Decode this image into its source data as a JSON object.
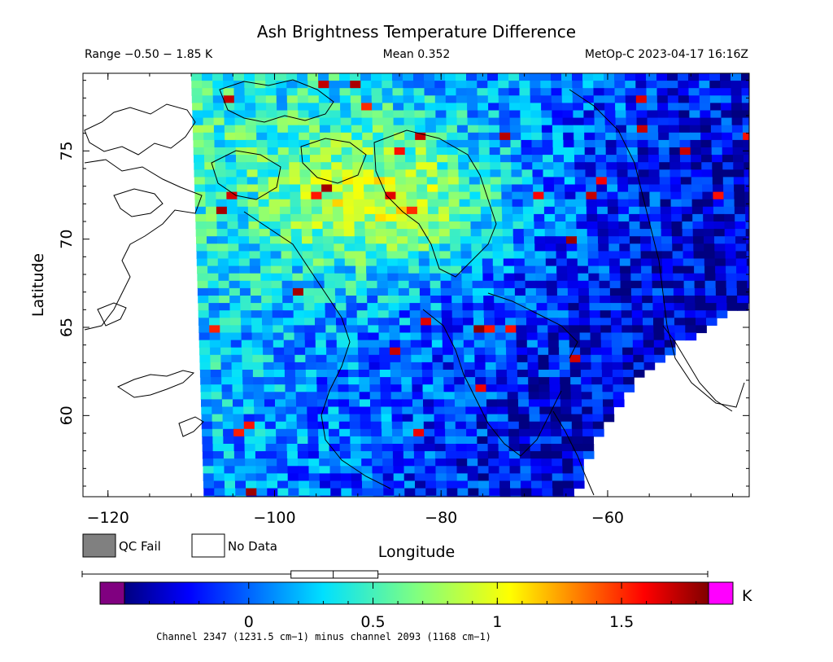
{
  "chart_data": {
    "type": "heatmap",
    "title": "Ash Brightness Temperature Difference",
    "header": {
      "range_text": "Range −0.50 − 1.85 K",
      "mean_text": "Mean 0.352",
      "source_text": "MetOp-C 2023-04-17 16:16Z"
    },
    "xlabel": "Longitude",
    "ylabel": "Latitude",
    "xlim": [
      -123,
      -43
    ],
    "ylim": [
      55.4,
      79.4
    ],
    "x_ticks": [
      -120,
      -100,
      -80,
      -60
    ],
    "x_tick_labels": [
      "−120",
      "−100",
      "−80",
      "−60"
    ],
    "y_ticks": [
      60,
      65,
      70,
      75
    ],
    "y_tick_labels": [
      "60",
      "65",
      "70",
      "75"
    ],
    "legend": {
      "qc_fail_label": "QC Fail",
      "no_data_label": "No Data",
      "qc_fail_color": "#808080",
      "no_data_color": "#ffffff"
    },
    "colorbar": {
      "min": -0.5,
      "max": 1.85,
      "unit": "K",
      "ticks": [
        0,
        0.5,
        1,
        1.5
      ],
      "tick_labels": [
        "0",
        "0.5",
        "1",
        "1.5"
      ],
      "under_color": "#800080",
      "over_color": "#ff00ff",
      "box_range": [
        0.17,
        0.52
      ],
      "median": 0.34,
      "footer": "Channel 2347 (1231.5 cm−1) minus channel 2093 (1168 cm−1)"
    }
  }
}
